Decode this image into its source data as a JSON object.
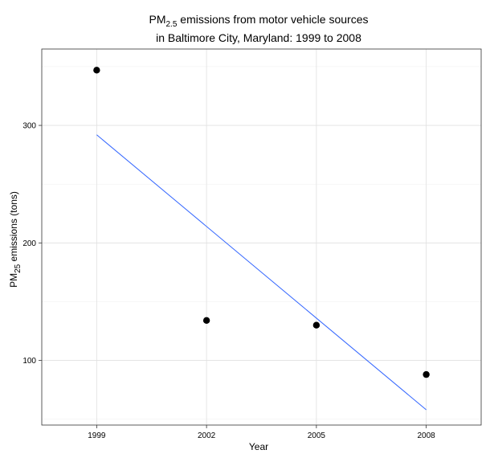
{
  "chart_data": {
    "type": "scatter",
    "title": {
      "line1_prefix": "PM",
      "line1_subscript": "2.5",
      "line1_suffix": " emissions from motor vehicle sources",
      "line2": "in Baltimore City, Maryland: 1999 to 2008"
    },
    "xlabel": "Year",
    "ylabel": {
      "prefix": "PM",
      "subscript": "25",
      "suffix": " emissions (tons)"
    },
    "x_ticks": [
      1999,
      2002,
      2005,
      2008
    ],
    "y_ticks": [
      100,
      200,
      300
    ],
    "xlim": [
      1997.5,
      2009.5
    ],
    "ylim": [
      45,
      365
    ],
    "grid": true,
    "series": [
      {
        "points": [
          {
            "x": 1999,
            "y": 347
          },
          {
            "x": 2002,
            "y": 134
          },
          {
            "x": 2005,
            "y": 130
          },
          {
            "x": 2008,
            "y": 88
          }
        ],
        "color": "#000000"
      }
    ],
    "trend_line": {
      "type": "linear",
      "x": [
        1999,
        2008
      ],
      "y": [
        292,
        58
      ],
      "color": "#3366FF"
    }
  }
}
